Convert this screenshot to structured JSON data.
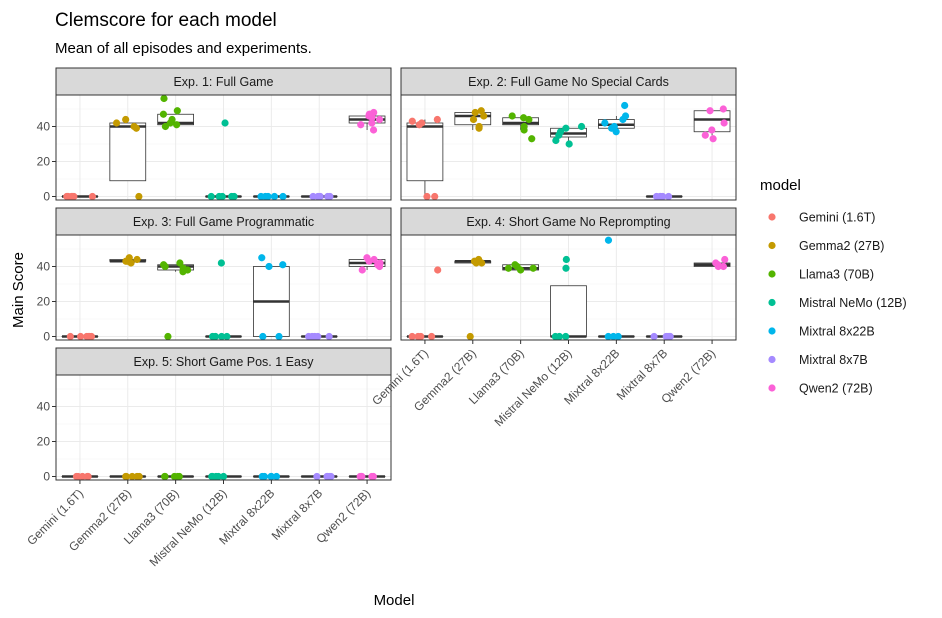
{
  "chart_data": {
    "type": "box+jitter (faceted)",
    "title": "Clemscore for each model",
    "subtitle": "Mean of all episodes and experiments.",
    "xlabel": "Model",
    "ylabel": "Main Score",
    "ylim": [
      -2,
      58
    ],
    "yticks": [
      0,
      20,
      40
    ],
    "categories": [
      "Gemini (1.6T)",
      "Gemma2 (27B)",
      "Llama3 (70B)",
      "Mistral NeMo (12B)",
      "Mixtral 8x22B",
      "Mixtral 8x7B",
      "Qwen2 (72B)"
    ],
    "legend": {
      "title": "model",
      "position": "right",
      "entries": [
        "Gemini (1.6T)",
        "Gemma2 (27B)",
        "Llama3 (70B)",
        "Mistral NeMo (12B)",
        "Mixtral 8x22B",
        "Mixtral 8x7B",
        "Qwen2 (72B)"
      ]
    },
    "colors": {
      "Gemini (1.6T)": "#F8766D",
      "Gemma2 (27B)": "#C49A00",
      "Llama3 (70B)": "#53B400",
      "Mistral NeMo (12B)": "#00C094",
      "Mixtral 8x22B": "#00B6EB",
      "Mixtral 8x7B": "#A58AFF",
      "Qwen2 (72B)": "#FB61D7"
    },
    "facets": [
      {
        "label": "Exp. 1: Full Game",
        "models": [
          {
            "model": "Gemini (1.6T)",
            "box": [
              0,
              0,
              0,
              0,
              0
            ],
            "points": [
              0,
              0,
              0,
              0,
              0,
              0,
              0
            ]
          },
          {
            "model": "Gemma2 (27B)",
            "box": [
              9,
              9,
              40,
              42,
              42
            ],
            "points": [
              0,
              40,
              42,
              44,
              39
            ]
          },
          {
            "model": "Llama3 (70B)",
            "box": [
              40,
              41,
              42,
              47,
              47
            ],
            "points": [
              56,
              49,
              44,
              42,
              41,
              40,
              47
            ]
          },
          {
            "model": "Mistral NeMo (12B)",
            "box": [
              0,
              0,
              0,
              0,
              0
            ],
            "points": [
              42,
              0,
              0,
              0,
              0,
              0
            ]
          },
          {
            "model": "Mixtral 8x22B",
            "box": [
              0,
              0,
              0,
              0,
              0
            ],
            "points": [
              0,
              0,
              0,
              0,
              0
            ]
          },
          {
            "model": "Mixtral 8x7B",
            "box": [
              0,
              0,
              0,
              0,
              0
            ],
            "points": [
              0,
              0,
              0,
              0,
              0
            ]
          },
          {
            "model": "Qwen2 (72B)",
            "box": [
              38,
              42,
              44,
              46,
              48
            ],
            "points": [
              47,
              48,
              46,
              45,
              44,
              42,
              41,
              38,
              47
            ]
          }
        ]
      },
      {
        "label": "Exp. 2: Full Game No Special Cards",
        "models": [
          {
            "model": "Gemini (1.6T)",
            "box": [
              0,
              9,
              40,
              42,
              44
            ],
            "points": [
              44,
              43,
              42,
              41,
              0,
              0
            ]
          },
          {
            "model": "Gemma2 (27B)",
            "box": [
              38,
              41,
              46,
              48,
              48
            ],
            "points": [
              49,
              48,
              46,
              40,
              39,
              44
            ]
          },
          {
            "model": "Llama3 (70B)",
            "box": [
              38,
              41,
              42,
              45,
              45
            ],
            "points": [
              46,
              45,
              44,
              40,
              38,
              33
            ]
          },
          {
            "model": "Mistral NeMo (12B)",
            "box": [
              32,
              34,
              36,
              39,
              40
            ],
            "points": [
              40,
              39,
              37,
              35,
              32,
              30
            ]
          },
          {
            "model": "Mixtral 8x22B",
            "box": [
              37,
              39,
              41,
              44,
              46
            ],
            "points": [
              52,
              46,
              44,
              42,
              40,
              39,
              37
            ]
          },
          {
            "model": "Mixtral 8x7B",
            "box": [
              0,
              0,
              0,
              0,
              0
            ],
            "points": [
              0,
              0,
              0,
              0,
              0
            ]
          },
          {
            "model": "Qwen2 (72B)",
            "box": [
              35,
              37,
              44,
              49,
              49
            ],
            "points": [
              50,
              49,
              42,
              38,
              35,
              33
            ]
          }
        ]
      },
      {
        "label": "Exp. 3: Full Game Programmatic",
        "models": [
          {
            "model": "Gemini (1.6T)",
            "box": [
              0,
              0,
              0,
              0,
              0
            ],
            "points": [
              0,
              0,
              0,
              0,
              0,
              0
            ]
          },
          {
            "model": "Gemma2 (27B)",
            "box": [
              42,
              43,
              43,
              44,
              45
            ],
            "points": [
              45,
              44,
              43,
              42,
              43
            ]
          },
          {
            "model": "Llama3 (70B)",
            "box": [
              37,
              38,
              40,
              41,
              41
            ],
            "points": [
              42,
              41,
              40,
              39,
              38,
              37,
              0
            ]
          },
          {
            "model": "Mistral NeMo (12B)",
            "box": [
              0,
              0,
              0,
              0,
              0
            ],
            "points": [
              42,
              0,
              0,
              0,
              0
            ]
          },
          {
            "model": "Mixtral 8x22B",
            "box": [
              0,
              0,
              20,
              40,
              40
            ],
            "points": [
              45,
              41,
              40,
              0,
              0
            ]
          },
          {
            "model": "Mixtral 8x7B",
            "box": [
              0,
              0,
              0,
              0,
              0
            ],
            "points": [
              0,
              0,
              0,
              0,
              0
            ]
          },
          {
            "model": "Qwen2 (72B)",
            "box": [
              38,
              40,
              42,
              44,
              45
            ],
            "points": [
              45,
              44,
              43,
              42,
              40,
              38,
              41
            ]
          }
        ]
      },
      {
        "label": "Exp. 4: Short Game No Reprompting",
        "models": [
          {
            "model": "Gemini (1.6T)",
            "box": [
              0,
              0,
              0,
              0,
              0
            ],
            "points": [
              38,
              0,
              0,
              0,
              0
            ]
          },
          {
            "model": "Gemma2 (27B)",
            "box": [
              42,
              42,
              43,
              43,
              43
            ],
            "points": [
              44,
              43,
              42,
              42,
              0
            ]
          },
          {
            "model": "Llama3 (70B)",
            "box": [
              38,
              38,
              39,
              41,
              41
            ],
            "points": [
              41,
              40,
              39,
              38,
              39
            ]
          },
          {
            "model": "Mistral NeMo (12B)",
            "box": [
              0,
              0,
              0,
              29,
              29
            ],
            "points": [
              44,
              39,
              0,
              0,
              0
            ]
          },
          {
            "model": "Mixtral 8x22B",
            "box": [
              0,
              0,
              0,
              0,
              0
            ],
            "points": [
              55,
              0,
              0,
              0
            ]
          },
          {
            "model": "Mixtral 8x7B",
            "box": [
              0,
              0,
              0,
              0,
              0
            ],
            "points": [
              0,
              0,
              0,
              0,
              0
            ]
          },
          {
            "model": "Qwen2 (72B)",
            "box": [
              40,
              40,
              41,
              42,
              42
            ],
            "points": [
              44,
              42,
              41,
              40,
              40
            ]
          }
        ]
      },
      {
        "label": "Exp. 5: Short Game Pos. 1 Easy",
        "models": [
          {
            "model": "Gemini (1.6T)",
            "box": [
              0,
              0,
              0,
              0,
              0
            ],
            "points": [
              0,
              0,
              0,
              0,
              0
            ]
          },
          {
            "model": "Gemma2 (27B)",
            "box": [
              0,
              0,
              0,
              0,
              0
            ],
            "points": [
              0,
              0,
              0,
              0,
              0
            ]
          },
          {
            "model": "Llama3 (70B)",
            "box": [
              0,
              0,
              0,
              0,
              0
            ],
            "points": [
              0,
              0,
              0,
              0,
              0
            ]
          },
          {
            "model": "Mistral NeMo (12B)",
            "box": [
              0,
              0,
              0,
              0,
              0
            ],
            "points": [
              0,
              0,
              0,
              0,
              0
            ]
          },
          {
            "model": "Mixtral 8x22B",
            "box": [
              0,
              0,
              0,
              0,
              0
            ],
            "points": [
              0,
              0,
              0,
              0,
              0
            ]
          },
          {
            "model": "Mixtral 8x7B",
            "box": [
              0,
              0,
              0,
              0,
              0
            ],
            "points": [
              0,
              0,
              0,
              0,
              0
            ]
          },
          {
            "model": "Qwen2 (72B)",
            "box": [
              0,
              0,
              0,
              0,
              0
            ],
            "points": [
              0,
              0,
              0,
              0,
              0
            ]
          }
        ]
      }
    ]
  }
}
